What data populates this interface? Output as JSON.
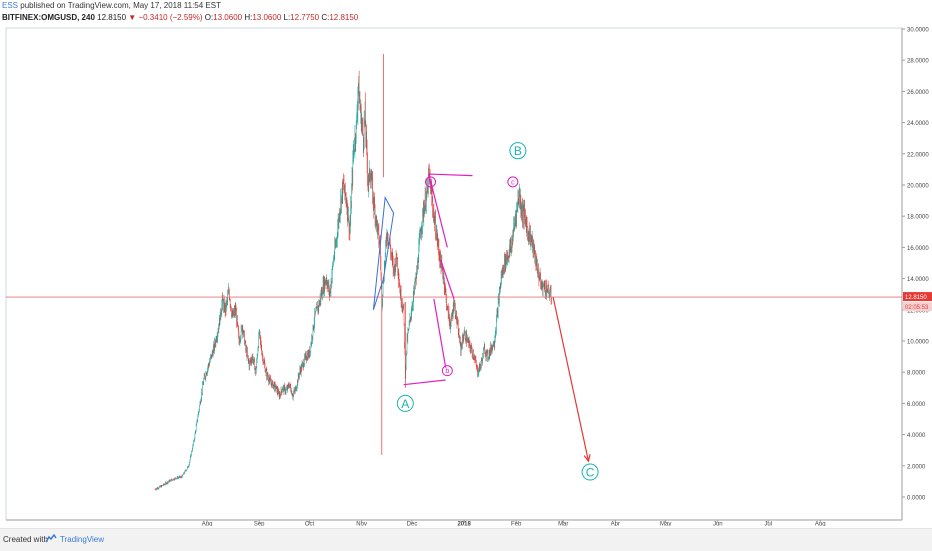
{
  "header": {
    "user": "ESS",
    "published_text": "published on TradingView.com, May 17, 2018 11:54 EST",
    "symbol": "BITFINEX:OMGUSD, 240",
    "last": "12.8150",
    "change": "−0.3410 (−2.59%)",
    "o_label": "O:",
    "o_value": "13.0600",
    "h_label": "H:",
    "h_value": "13.0600",
    "l_label": "L:",
    "l_value": "12.7750",
    "c_label": "C:",
    "c_value": "12.8150"
  },
  "footer": {
    "created_with": "Created with",
    "brand": "TradingView"
  },
  "colors": {
    "up": "#26a69a",
    "down": "#e53935",
    "wave_magenta": "#e020c0",
    "wave_blue": "#3a6fd8",
    "projection": "#e53935",
    "label_teal": "#1ab3b3",
    "price_line": "#e57373"
  },
  "chart_data": {
    "type": "candlestick",
    "y_ticks": [
      "30.0000",
      "28.0000",
      "26.0000",
      "24.0000",
      "22.0000",
      "20.0000",
      "18.0000",
      "16.0000",
      "14.0000",
      "12.0000",
      "10.0000",
      "8.0000",
      "6.0000",
      "4.0000",
      "2.0000",
      "0.0000"
    ],
    "y_tick_values": [
      30,
      28,
      26,
      24,
      22,
      20,
      18,
      16,
      14,
      12,
      10,
      8,
      6,
      4,
      2,
      0
    ],
    "x_ticks": [
      {
        "label": "Aug",
        "day": 31
      },
      {
        "label": "Sep",
        "day": 62
      },
      {
        "label": "Oct",
        "day": 92
      },
      {
        "label": "Nov",
        "day": 123
      },
      {
        "label": "Dec",
        "day": 153
      },
      {
        "label": "2018",
        "day": 184
      },
      {
        "label": "Feb",
        "day": 215
      },
      {
        "label": "Mar",
        "day": 243
      },
      {
        "label": "Apr",
        "day": 274
      },
      {
        "label": "May",
        "day": 304
      },
      {
        "label": "Jun",
        "day": 335
      },
      {
        "label": "Jul",
        "day": 365
      },
      {
        "label": "Aug",
        "day": 396
      }
    ],
    "ylim": [
      0,
      30
    ],
    "current_price": 12.815,
    "current_price_label": "12.8150",
    "countdown_label": "02:05:53",
    "price_path": [
      [
        0,
        0.5
      ],
      [
        4,
        0.7
      ],
      [
        8,
        1.0
      ],
      [
        12,
        1.2
      ],
      [
        16,
        1.3
      ],
      [
        20,
        2.0
      ],
      [
        23,
        3.5
      ],
      [
        26,
        5.5
      ],
      [
        29,
        7.5
      ],
      [
        32,
        8.5
      ],
      [
        35,
        9.5
      ],
      [
        38,
        11.0
      ],
      [
        40,
        12.5
      ],
      [
        42,
        12.0
      ],
      [
        44,
        13.2
      ],
      [
        46,
        11.5
      ],
      [
        48,
        12.0
      ],
      [
        50,
        10.0
      ],
      [
        52,
        11.0
      ],
      [
        54,
        9.5
      ],
      [
        56,
        8.5
      ],
      [
        58,
        9.0
      ],
      [
        60,
        8.0
      ],
      [
        62,
        10.5
      ],
      [
        64,
        9.0
      ],
      [
        66,
        8.0
      ],
      [
        68,
        7.5
      ],
      [
        70,
        7.2
      ],
      [
        72,
        7.0
      ],
      [
        74,
        6.5
      ],
      [
        76,
        7.0
      ],
      [
        78,
        6.8
      ],
      [
        80,
        7.2
      ],
      [
        82,
        6.5
      ],
      [
        84,
        7.0
      ],
      [
        86,
        8.0
      ],
      [
        88,
        8.5
      ],
      [
        90,
        9.0
      ],
      [
        92,
        9.2
      ],
      [
        95,
        11.5
      ],
      [
        98,
        12.5
      ],
      [
        100,
        13.5
      ],
      [
        102,
        14.0
      ],
      [
        104,
        13.0
      ],
      [
        106,
        15.0
      ],
      [
        108,
        16.5
      ],
      [
        110,
        18.5
      ],
      [
        112,
        20.0
      ],
      [
        114,
        19.0
      ],
      [
        116,
        17.0
      ],
      [
        118,
        22.0
      ],
      [
        120,
        24.0
      ],
      [
        121,
        26.5
      ],
      [
        122,
        25.0
      ],
      [
        124,
        23.0
      ],
      [
        125,
        24.5
      ],
      [
        126,
        22.0
      ],
      [
        127,
        20.0
      ],
      [
        128,
        21.0
      ],
      [
        130,
        19.0
      ],
      [
        132,
        17.5
      ],
      [
        134,
        16.0
      ],
      [
        135,
        12.5
      ],
      [
        136,
        14.0
      ],
      [
        138,
        17.0
      ],
      [
        140,
        16.0
      ],
      [
        142,
        14.5
      ],
      [
        144,
        15.5
      ],
      [
        146,
        13.0
      ],
      [
        148,
        12.0
      ],
      [
        149,
        8.0
      ],
      [
        150,
        10.0
      ],
      [
        152,
        11.5
      ],
      [
        154,
        13.0
      ],
      [
        156,
        14.5
      ],
      [
        158,
        17.0
      ],
      [
        160,
        18.5
      ],
      [
        162,
        19.5
      ],
      [
        163,
        20.6
      ],
      [
        164,
        19.8
      ],
      [
        166,
        18.0
      ],
      [
        168,
        16.5
      ],
      [
        170,
        15.0
      ],
      [
        172,
        14.0
      ],
      [
        174,
        12.0
      ],
      [
        176,
        11.0
      ],
      [
        178,
        12.5
      ],
      [
        180,
        11.0
      ],
      [
        182,
        9.5
      ],
      [
        184,
        10.5
      ],
      [
        186,
        10.0
      ],
      [
        188,
        9.5
      ],
      [
        190,
        9.0
      ],
      [
        191,
        8.5
      ],
      [
        192,
        8.0
      ],
      [
        194,
        8.5
      ],
      [
        196,
        9.5
      ],
      [
        198,
        9.0
      ],
      [
        200,
        9.5
      ],
      [
        202,
        10.0
      ],
      [
        204,
        12.0
      ],
      [
        206,
        14.0
      ],
      [
        208,
        15.0
      ],
      [
        210,
        15.5
      ],
      [
        212,
        16.0
      ],
      [
        214,
        17.5
      ],
      [
        216,
        19.0
      ],
      [
        217,
        19.5
      ],
      [
        218,
        18.5
      ],
      [
        220,
        18.0
      ],
      [
        222,
        17.0
      ],
      [
        224,
        16.5
      ],
      [
        226,
        15.5
      ],
      [
        228,
        14.5
      ],
      [
        230,
        13.5
      ],
      [
        232,
        13.5
      ],
      [
        234,
        13.2
      ],
      [
        236,
        12.8
      ]
    ],
    "annotations": {
      "triangle_blue": [
        [
          130,
          12.0
        ],
        [
          137,
          19.2
        ],
        [
          142,
          18.2
        ],
        [
          136,
          14.0
        ]
      ],
      "A_line": [
        [
          148,
          7.2
        ],
        [
          173,
          7.5
        ]
      ],
      "B_line": [
        [
          163,
          20.7
        ],
        [
          189,
          20.6
        ]
      ],
      "abc_line1": [
        [
          163,
          20.7
        ],
        [
          174,
          16.0
        ]
      ],
      "abc_line2": [
        [
          170,
          15.2
        ],
        [
          178,
          12.7
        ]
      ],
      "b_diag": [
        [
          166,
          12.7
        ],
        [
          173,
          8.3
        ]
      ],
      "projection": [
        [
          237,
          12.8
        ],
        [
          258,
          2.3
        ]
      ],
      "labels": [
        {
          "text": "A",
          "x": 149,
          "y": 6.0,
          "style": "big"
        },
        {
          "text": "B",
          "x": 216,
          "y": 22.2,
          "style": "big"
        },
        {
          "text": "C",
          "x": 259,
          "y": 1.6,
          "style": "big"
        },
        {
          "text": "a",
          "x": 164,
          "y": 20.2,
          "style": "small"
        },
        {
          "text": "b",
          "x": 174,
          "y": 8.1,
          "style": "small"
        },
        {
          "text": "c",
          "x": 213,
          "y": 20.2,
          "style": "small"
        }
      ]
    }
  }
}
